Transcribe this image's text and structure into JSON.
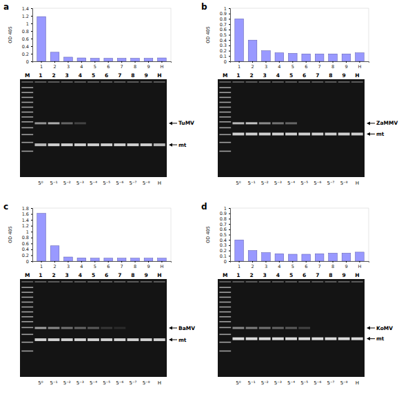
{
  "panels": [
    "a",
    "b",
    "c",
    "d"
  ],
  "chart_data": [
    {
      "type": "bar",
      "y_label": "OD 405",
      "categories": [
        "1",
        "2",
        "3",
        "4",
        "5",
        "6",
        "7",
        "8",
        "9",
        "H"
      ],
      "values": [
        1.18,
        0.24,
        0.11,
        0.09,
        0.08,
        0.08,
        0.08,
        0.08,
        0.08,
        0.09
      ],
      "color": "#9999ff",
      "ylim": [
        0,
        1.4
      ],
      "yticks": [
        0,
        0.2,
        0.4,
        0.6,
        0.8,
        1,
        1.2,
        1.4
      ],
      "grid": false
    },
    {
      "type": "bar",
      "y_label": "OD 405",
      "categories": [
        "1",
        "2",
        "3",
        "4",
        "5",
        "6",
        "7",
        "8",
        "9",
        "H"
      ],
      "values": [
        0.8,
        0.4,
        0.2,
        0.16,
        0.15,
        0.14,
        0.14,
        0.14,
        0.14,
        0.16
      ],
      "color": "#9999ff",
      "ylim": [
        0,
        1
      ],
      "yticks": [
        0,
        0.1,
        0.2,
        0.3,
        0.4,
        0.5,
        0.6,
        0.7,
        0.8,
        0.9,
        1
      ],
      "grid": false
    },
    {
      "type": "bar",
      "y_label": "OD 405",
      "categories": [
        "1",
        "2",
        "3",
        "4",
        "5",
        "6",
        "7",
        "8",
        "9",
        "H"
      ],
      "values": [
        1.62,
        0.52,
        0.14,
        0.11,
        0.1,
        0.1,
        0.1,
        0.1,
        0.1,
        0.1
      ],
      "color": "#9999ff",
      "ylim": [
        0,
        1.8
      ],
      "yticks": [
        0,
        0.2,
        0.4,
        0.6,
        0.8,
        1,
        1.2,
        1.4,
        1.6,
        1.8
      ],
      "grid": false
    },
    {
      "type": "bar",
      "y_label": "OD 405",
      "categories": [
        "1",
        "2",
        "3",
        "4",
        "5",
        "6",
        "7",
        "8",
        "9",
        "H"
      ],
      "values": [
        0.4,
        0.2,
        0.16,
        0.14,
        0.13,
        0.13,
        0.14,
        0.15,
        0.15,
        0.17
      ],
      "color": "#9999ff",
      "ylim": [
        0,
        1
      ],
      "yticks": [
        0,
        0.1,
        0.2,
        0.3,
        0.4,
        0.5,
        0.6,
        0.7,
        0.8,
        0.9,
        1
      ],
      "grid": false
    }
  ],
  "gels": [
    {
      "lanes": [
        "M",
        "1",
        "2",
        "3",
        "4",
        "5",
        "6",
        "7",
        "8",
        "9",
        "H"
      ],
      "dilutions": [
        "5⁰",
        "5⁻¹",
        "5⁻²",
        "5⁻³",
        "5⁻⁴",
        "5⁻⁵",
        "5⁻⁶",
        "5⁻⁷",
        "5⁻⁸",
        "H"
      ],
      "virus_label": "TuMV",
      "mt_label": "mt",
      "virus_band": [
        0.55,
        0.65,
        0.35,
        0.2,
        0,
        0,
        0,
        0,
        0,
        0
      ],
      "mt_band": [
        0.7,
        0.8,
        0.8,
        0.8,
        0.8,
        0.8,
        0.8,
        0.8,
        0.8,
        0.7
      ]
    },
    {
      "lanes": [
        "M",
        "1",
        "2",
        "3",
        "4",
        "5",
        "6",
        "7",
        "8",
        "9",
        "H"
      ],
      "dilutions": [
        "5⁰",
        "5⁻¹",
        "5⁻²",
        "5⁻³",
        "5⁻⁴",
        "5⁻⁵",
        "5⁻⁶",
        "5⁻⁷",
        "5⁻⁸",
        "H"
      ],
      "virus_label": "ZaMMV",
      "mt_label": "mt",
      "virus_band": [
        0.7,
        0.75,
        0.5,
        0.4,
        0.35,
        0,
        0,
        0,
        0,
        0
      ],
      "mt_band": [
        0.8,
        0.8,
        0.8,
        0.8,
        0.8,
        0.8,
        0.8,
        0.8,
        0.8,
        0.8
      ]
    },
    {
      "lanes": [
        "M",
        "1",
        "2",
        "3",
        "4",
        "5",
        "6",
        "7",
        "8",
        "9",
        "H"
      ],
      "dilutions": [
        "5⁰",
        "5⁻¹",
        "5⁻²",
        "5⁻³",
        "5⁻⁴",
        "5⁻⁵",
        "5⁻⁶",
        "5⁻⁷",
        "5⁻⁸",
        "H"
      ],
      "virus_label": "BaMV",
      "mt_label": "mt",
      "virus_band": [
        0.6,
        0.5,
        0.4,
        0.35,
        0.3,
        0.15,
        0.1,
        0,
        0,
        0
      ],
      "mt_band": [
        0.8,
        0.8,
        0.8,
        0.8,
        0.8,
        0.8,
        0.8,
        0.8,
        0.8,
        0.8
      ]
    },
    {
      "lanes": [
        "M",
        "1",
        "2",
        "3",
        "4",
        "5",
        "6",
        "7",
        "8",
        "9",
        "H"
      ],
      "dilutions": [
        "5⁰",
        "5⁻¹",
        "5⁻²",
        "5⁻³",
        "5⁻⁴",
        "5⁻⁵",
        "5⁻⁶",
        "5⁻⁷",
        "5⁻⁸",
        "H"
      ],
      "virus_label": "KoMV",
      "mt_label": "mt",
      "virus_band": [
        0.5,
        0.45,
        0.4,
        0.35,
        0.3,
        0.2,
        0,
        0,
        0,
        0
      ],
      "mt_band": [
        0.85,
        0.85,
        0.85,
        0.85,
        0.85,
        0.85,
        0.85,
        0.85,
        0.85,
        0.85
      ]
    }
  ]
}
